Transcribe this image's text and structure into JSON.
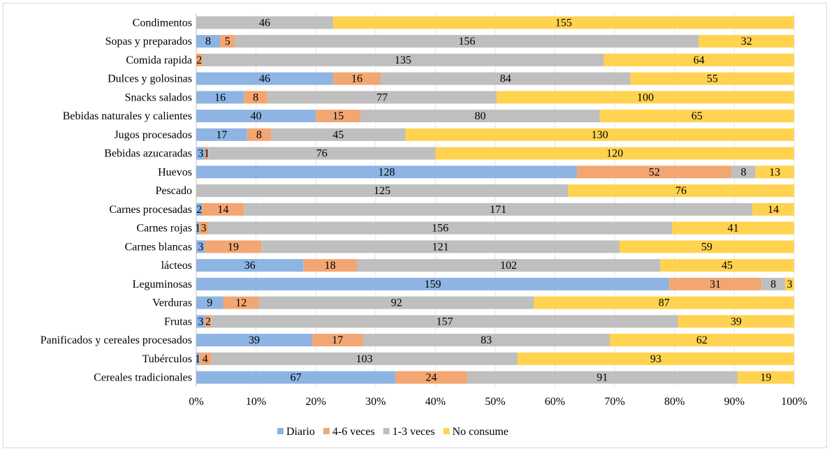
{
  "chart_data": {
    "type": "bar",
    "orientation": "horizontal",
    "stacked": "percent",
    "categories": [
      "Condimentos",
      "Sopas y preparados",
      "Comida rapida",
      "Dulces y golosinas",
      "Snacks salados",
      "Bebidas naturales y calientes",
      "Jugos procesados",
      "Bebidas azucaradas",
      "Huevos",
      "Pescado",
      "Carnes procesadas",
      "Carnes rojas",
      "Carnes blancas",
      "lácteos",
      "Leguminosas",
      "Verduras",
      "Frutas",
      "Panificados y cereales procesados",
      "Tubérculos",
      "Cereales tradicionales"
    ],
    "series": [
      {
        "name": "Diario",
        "color": "#8db4e2",
        "values": [
          0,
          8,
          0,
          46,
          16,
          40,
          17,
          3,
          128,
          0,
          2,
          1,
          3,
          36,
          159,
          9,
          3,
          39,
          1,
          67
        ]
      },
      {
        "name": "4-6 veces",
        "color": "#f2a672",
        "values": [
          0,
          5,
          2,
          16,
          8,
          15,
          8,
          1,
          52,
          0,
          14,
          3,
          19,
          18,
          31,
          12,
          2,
          17,
          4,
          24
        ]
      },
      {
        "name": "1-3 veces",
        "color": "#bfbfbf",
        "values": [
          46,
          156,
          135,
          84,
          77,
          80,
          45,
          76,
          8,
          125,
          171,
          156,
          121,
          102,
          8,
          92,
          157,
          83,
          103,
          91
        ]
      },
      {
        "name": "No consume",
        "color": "#ffd34f",
        "values": [
          155,
          32,
          64,
          55,
          100,
          65,
          130,
          120,
          13,
          76,
          14,
          41,
          59,
          45,
          3,
          87,
          39,
          62,
          93,
          19
        ]
      }
    ],
    "xticks": [
      "0%",
      "10%",
      "20%",
      "30%",
      "40%",
      "50%",
      "60%",
      "70%",
      "80%",
      "90%",
      "100%"
    ],
    "xlim": [
      0,
      100
    ],
    "grid": true,
    "legend": "bottom",
    "title": "",
    "xlabel": "",
    "ylabel": ""
  }
}
